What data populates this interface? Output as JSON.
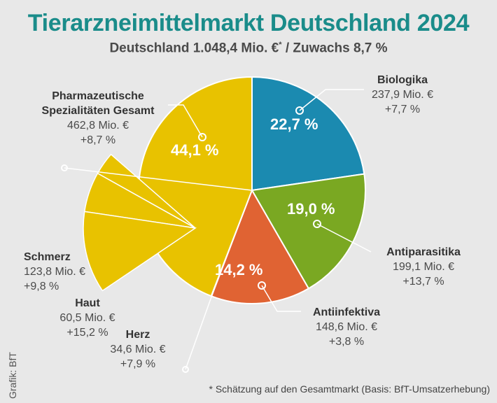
{
  "header": {
    "title": "Tierarzneimittelmarkt Deutschland 2024",
    "subtitle": "Deutschland 1.048,4 Mio. €",
    "subtitle_star": "*",
    "subtitle_growth": "/ Zuwachs 8,7 %"
  },
  "chart_data": {
    "type": "pie",
    "title": "Tierarzneimittelmarkt Deutschland 2024",
    "total": "1.048,4 Mio. €",
    "growth": "+8,7 %",
    "slices": [
      {
        "name": "Biologika",
        "value": 237.9,
        "value_label": "237,9 Mio. €",
        "growth": "+7,7 %",
        "percent": 22.7,
        "percent_label": "22,7 %",
        "color": "#1b8ab0"
      },
      {
        "name": "Antiparasitika",
        "value": 199.1,
        "value_label": "199,1 Mio. €",
        "growth": "+13,7 %",
        "percent": 19.0,
        "percent_label": "19,0 %",
        "color": "#7aa822"
      },
      {
        "name": "Antiinfektiva",
        "value": 148.6,
        "value_label": "148,6 Mio. €",
        "growth": "+3,8 %",
        "percent": 14.2,
        "percent_label": "14,2 %",
        "color": "#e06333"
      },
      {
        "name": "Pharmazeutische Spezialitäten Gesamt",
        "name_line1": "Pharmazeutische",
        "name_line2": "Spezialitäten Gesamt",
        "value": 462.8,
        "value_label": "462,8 Mio. €",
        "growth": "+8,7 %",
        "percent": 44.1,
        "percent_label": "44,1 %",
        "color": "#e8c200"
      }
    ],
    "breakout": [
      {
        "name": "Schmerz",
        "value": 123.8,
        "value_label": "123,8 Mio. €",
        "growth": "+9,8 %"
      },
      {
        "name": "Haut",
        "value": 60.5,
        "value_label": "60,5 Mio. €",
        "growth": "+15,2 %"
      },
      {
        "name": "Herz",
        "value": 34.6,
        "value_label": "34,6 Mio. €",
        "growth": "+7,9 %"
      }
    ]
  },
  "footer": {
    "credit": "Grafik: BfT",
    "footnote": "* Schätzung auf den Gesamtmarkt (Basis: BfT-Umsatzerhebung)"
  }
}
